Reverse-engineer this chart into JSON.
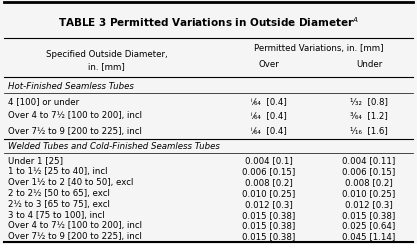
{
  "title": "TABLE 3 Permitted Variations in Outside Diameter",
  "title_superscript": "A",
  "col_headers": [
    "Specified Outside Diameter,\nin. [mm]",
    "Permitted Variations, in. [mm]\nOver",
    "Permitted Variations, in. [mm]\nUnder"
  ],
  "col_subheaders": [
    "",
    "Over",
    "Under"
  ],
  "section1_label": "Hot-Finished Seamless Tubes",
  "section1_rows": [
    [
      "4 [100] or under",
      "ⁱ⁄₆₄  [0.4]",
      "¹⁄₃₂  [0.8]"
    ],
    [
      "Over 4 to 7½ [100 to 200], incl",
      "ⁱ⁄₆₄  [0.4]",
      "³⁄₆₄  [1.2]"
    ],
    [
      "Over 7½ to 9 [200 to 225], incl",
      "ⁱ⁄₆₄  [0.4]",
      "¹⁄₁₆  [1.6]"
    ]
  ],
  "section2_label": "Welded Tubes and Cold-Finished Seamless Tubes",
  "section2_rows": [
    [
      "Under 1 [25]",
      "0.004 [0.1]",
      "0.004 [0.11]"
    ],
    [
      "1 to 1½ [25 to 40], incl",
      "0.006 [0.15]",
      "0.006 [0.15]"
    ],
    [
      "Over 1½ to 2 [40 to 50], excl",
      "0.008 [0.2]",
      "0.008 [0.2]"
    ],
    [
      "2 to 2½ [50 to 65], excl",
      "0.010 [0.25]",
      "0.010 [0.25]"
    ],
    [
      "2½ to 3 [65 to 75], excl",
      "0.012 [0.3]",
      "0.012 [0.3]"
    ],
    [
      "3 to 4 [75 to 100], incl",
      "0.015 [0.38]",
      "0.015 [0.38]"
    ],
    [
      "Over 4 to 7½ [100 to 200], incl",
      "0.015 [0.38]",
      "0.025 [0.64]"
    ],
    [
      "Over 7½ to 9 [200 to 225], incl",
      "0.015 [0.38]",
      "0.045 [1.14]"
    ]
  ],
  "bg_color": "#f5f5f5",
  "header_bg": "#ffffff",
  "font_size": 6.2,
  "title_font_size": 7.5
}
